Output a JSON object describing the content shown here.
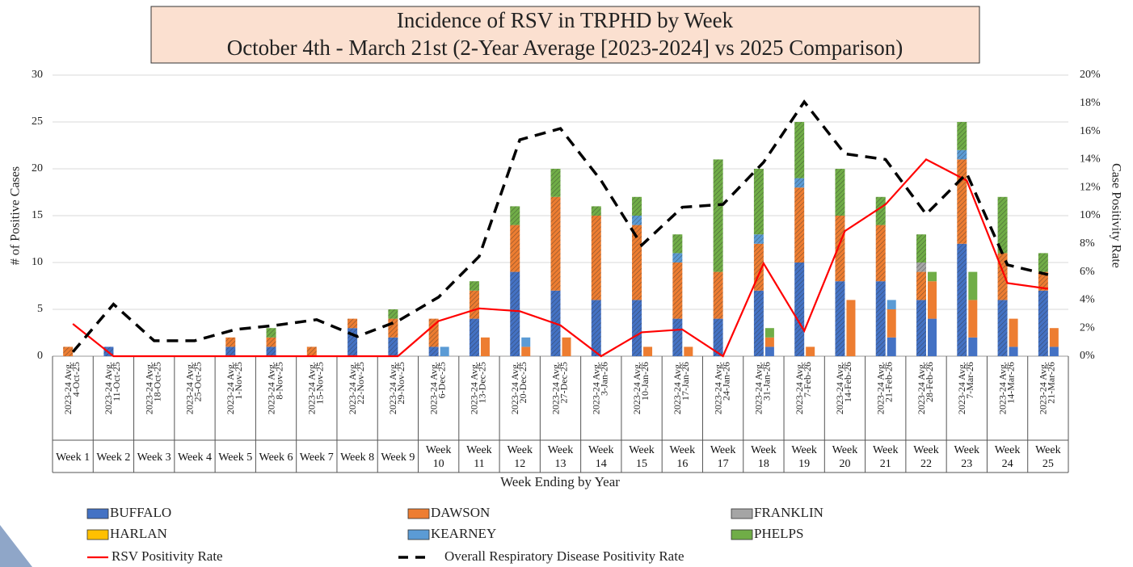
{
  "chart_data": {
    "type": "stacked_bar_line",
    "title": "Incidence of RSV in TRPHD by Week",
    "subtitle": "October 4th - March 21st (2-Year Average [2023-2024] vs 2025 Comparison)",
    "y_label": "# of Positive Cases",
    "y2_label": "Case Positivity Rate",
    "x_label": "Week Ending by Year",
    "avg_label": "2023-24 Avg.",
    "categories": [
      "Week 1",
      "Week 2",
      "Week 3",
      "Week 4",
      "Week 5",
      "Week 6",
      "Week 7",
      "Week 8",
      "Week 9",
      "Week 10",
      "Week 11",
      "Week 12",
      "Week 13",
      "Week 14",
      "Week 15",
      "Week 16",
      "Week 17",
      "Week 18",
      "Week 19",
      "Week 20",
      "Week 21",
      "Week 22",
      "Week 23",
      "Week 24",
      "Week 25"
    ],
    "dates": [
      "4-Oct-25",
      "11-Oct-25",
      "18-Oct-25",
      "25-Oct-25",
      "1-Nov-25",
      "8-Nov-25",
      "15-Nov-25",
      "22-Nov-25",
      "29-Nov-25",
      "6-Dec-25",
      "13-Dec-25",
      "20-Dec-25",
      "27-Dec-25",
      "3-Jan-26",
      "10-Jan-26",
      "17-Jan-26",
      "24-Jan-26",
      "31-Jan-26",
      "7-Feb-26",
      "14-Feb-26",
      "21-Feb-26",
      "28-Feb-26",
      "7-Mar-26",
      "14-Mar-26",
      "21-Mar-26"
    ],
    "series": [
      {
        "name": "BUFFALO",
        "color": "#4472c4",
        "avg": [
          0,
          1,
          0,
          0,
          1,
          1,
          0,
          3,
          2,
          1,
          4,
          9,
          7,
          6,
          6,
          4,
          4,
          7,
          10,
          8,
          8,
          6,
          12,
          6,
          7
        ],
        "current": [
          0,
          0,
          0,
          0,
          0,
          0,
          0,
          0,
          0,
          0,
          0,
          0,
          0,
          0,
          0,
          0,
          0,
          1,
          0,
          0,
          2,
          4,
          2,
          1,
          1
        ]
      },
      {
        "name": "DAWSON",
        "color": "#ed7d31",
        "avg": [
          1,
          0,
          0,
          0,
          1,
          1,
          1,
          1,
          2,
          3,
          3,
          5,
          10,
          9,
          8,
          6,
          5,
          5,
          8,
          7,
          6,
          3,
          9,
          5,
          2
        ],
        "current": [
          0,
          0,
          0,
          0,
          0,
          0,
          0,
          0,
          0,
          0,
          2,
          1,
          2,
          0,
          1,
          1,
          0,
          1,
          1,
          6,
          3,
          4,
          4,
          3,
          2
        ]
      },
      {
        "name": "FRANKLIN",
        "color": "#a5a5a5",
        "avg": [
          0,
          0,
          0,
          0,
          0,
          0,
          0,
          0,
          0,
          0,
          0,
          0,
          0,
          0,
          0,
          0,
          0,
          0,
          0,
          0,
          0,
          1,
          0,
          0,
          0
        ],
        "current": [
          0,
          0,
          0,
          0,
          0,
          0,
          0,
          0,
          0,
          0,
          0,
          0,
          0,
          0,
          0,
          0,
          0,
          0,
          0,
          0,
          0,
          0,
          0,
          0,
          0
        ]
      },
      {
        "name": "HARLAN",
        "color": "#ffc000",
        "avg": [
          0,
          0,
          0,
          0,
          0,
          0,
          0,
          0,
          0,
          0,
          0,
          0,
          0,
          0,
          0,
          0,
          0,
          0,
          0,
          0,
          0,
          0,
          0,
          0,
          0
        ],
        "current": [
          0,
          0,
          0,
          0,
          0,
          0,
          0,
          0,
          0,
          0,
          0,
          0,
          0,
          0,
          0,
          0,
          0,
          0,
          0,
          0,
          0,
          0,
          0,
          0,
          0
        ]
      },
      {
        "name": "KEARNEY",
        "color": "#5b9bd5",
        "avg": [
          0,
          0,
          0,
          0,
          0,
          0,
          0,
          0,
          0,
          0,
          0,
          0,
          0,
          0,
          1,
          1,
          0,
          1,
          1,
          0,
          0,
          0,
          1,
          0,
          0
        ],
        "current": [
          0,
          0,
          0,
          0,
          0,
          0,
          0,
          0,
          0,
          1,
          0,
          1,
          0,
          0,
          0,
          0,
          0,
          0,
          0,
          0,
          1,
          0,
          0,
          0,
          0
        ]
      },
      {
        "name": "PHELPS",
        "color": "#70ad47",
        "avg": [
          0,
          0,
          0,
          0,
          0,
          1,
          0,
          0,
          1,
          0,
          1,
          2,
          3,
          1,
          2,
          2,
          12,
          7,
          6,
          5,
          3,
          3,
          3,
          6,
          2
        ],
        "current": [
          0,
          0,
          0,
          0,
          0,
          0,
          0,
          0,
          0,
          0,
          0,
          0,
          0,
          0,
          0,
          0,
          0,
          1,
          0,
          0,
          0,
          1,
          3,
          0,
          0
        ]
      }
    ],
    "lines": [
      {
        "name": "RSV Positivity Rate",
        "color": "#ff0000",
        "dashed": false,
        "axis": "y2",
        "values": [
          2.3,
          0,
          0,
          0,
          0,
          0,
          0,
          0,
          0,
          2.5,
          3.4,
          3.2,
          2.2,
          0,
          1.7,
          1.9,
          0,
          6.6,
          1.8,
          8.9,
          10.8,
          14.0,
          12.5,
          5.2,
          4.8
        ]
      },
      {
        "name": "Overall Respiratory Disease Positivity Rate",
        "color": "#000000",
        "dashed": true,
        "axis": "y2",
        "values": [
          0.3,
          3.7,
          1.1,
          1.1,
          1.9,
          2.2,
          2.6,
          1.4,
          2.5,
          4.2,
          7.1,
          15.4,
          16.2,
          12.5,
          7.9,
          10.6,
          10.8,
          13.8,
          18.1,
          14.4,
          14.0,
          10.1,
          13.0,
          6.5,
          5.8
        ]
      }
    ],
    "ylim": [
      0,
      30
    ],
    "yticks": [
      0,
      5,
      10,
      15,
      20,
      25,
      30
    ],
    "y2lim": [
      0,
      20
    ],
    "y2ticks": [
      {
        "value": 0,
        "label": "0%"
      },
      {
        "value": 2,
        "label": "2%"
      },
      {
        "value": 4,
        "label": "4%"
      },
      {
        "value": 6,
        "label": "6%"
      },
      {
        "value": 8,
        "label": "8%"
      },
      {
        "value": 10,
        "label": "10%"
      },
      {
        "value": 12,
        "label": "12%"
      },
      {
        "value": 14,
        "label": "14%"
      },
      {
        "value": 16,
        "label": "16%"
      },
      {
        "value": 18,
        "label": "18%"
      },
      {
        "value": 20,
        "label": "20%"
      }
    ],
    "grid": true
  }
}
